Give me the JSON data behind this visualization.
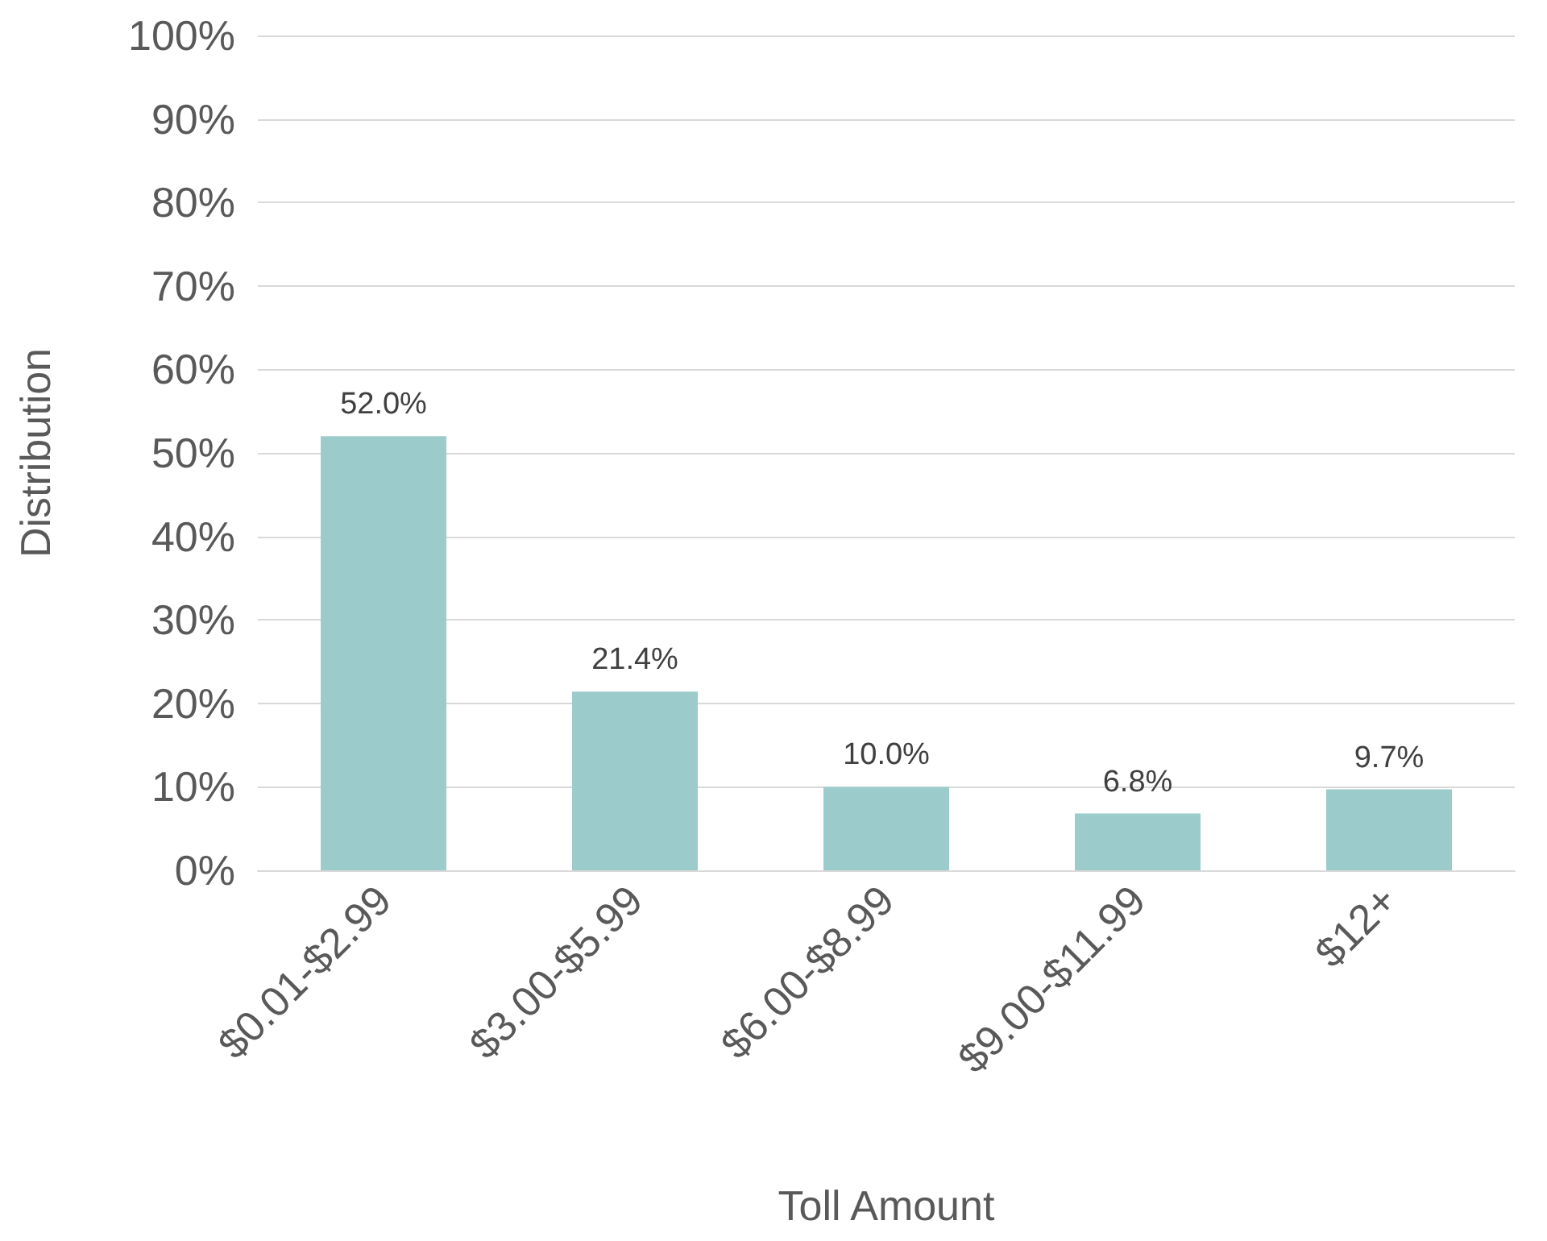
{
  "chart_data": {
    "type": "bar",
    "xlabel": "Toll Amount",
    "ylabel": "Distribution",
    "categories": [
      "$0.01-$2.99",
      "$3.00-$5.99",
      "$6.00-$8.99",
      "$9.00-$11.99",
      "$12+"
    ],
    "values": [
      52.0,
      21.4,
      10.0,
      6.8,
      9.7
    ],
    "value_labels": [
      "52.0%",
      "21.4%",
      "10.0%",
      "6.8%",
      "9.7%"
    ],
    "color": "#9bcbcb",
    "ylim": [
      0,
      100
    ],
    "yticks": [
      {
        "value": 0,
        "label": "0%"
      },
      {
        "value": 10,
        "label": "10%"
      },
      {
        "value": 20,
        "label": "20%"
      },
      {
        "value": 30,
        "label": "30%"
      },
      {
        "value": 40,
        "label": "40%"
      },
      {
        "value": 50,
        "label": "50%"
      },
      {
        "value": 60,
        "label": "60%"
      },
      {
        "value": 70,
        "label": "70%"
      },
      {
        "value": 80,
        "label": "80%"
      },
      {
        "value": 90,
        "label": "90%"
      },
      {
        "value": 100,
        "label": "100%"
      }
    ],
    "grid": "y"
  }
}
